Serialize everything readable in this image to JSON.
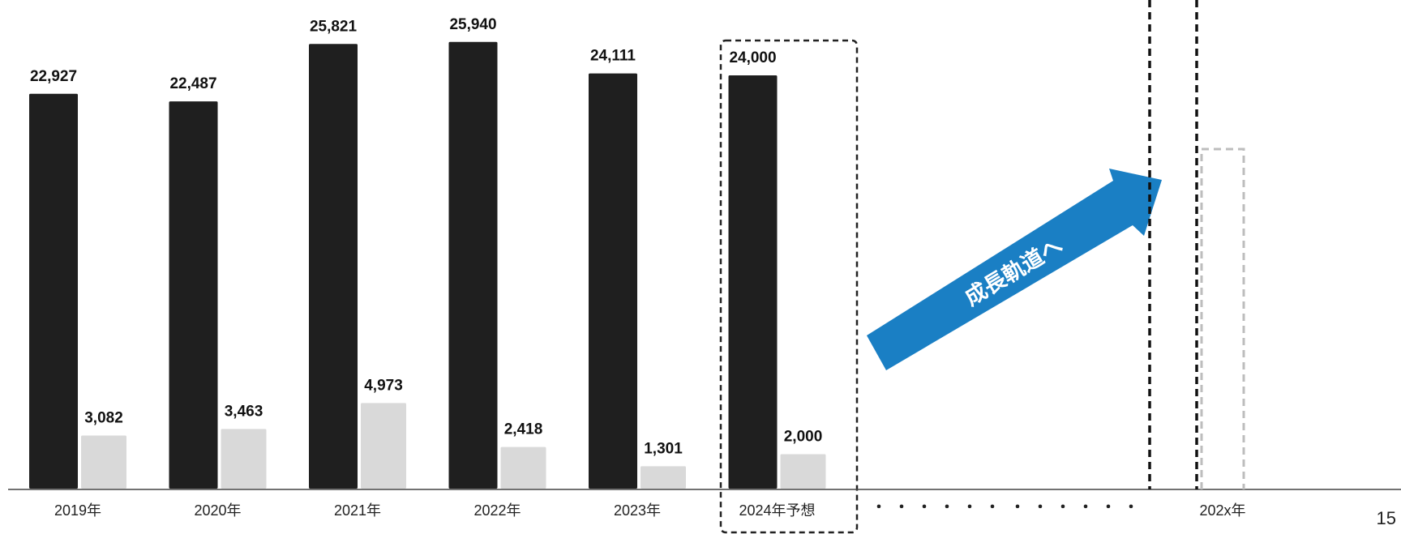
{
  "chart_data": {
    "type": "bar",
    "categories": [
      "2019年",
      "2020年",
      "2021年",
      "2022年",
      "2023年",
      "2024年予想"
    ],
    "series": [
      {
        "values": [
          22927,
          22487,
          25821,
          25940,
          24111,
          24000
        ],
        "labels": [
          "22,927",
          "22,487",
          "25,821",
          "25,940",
          "24,111",
          "24,000"
        ],
        "color": "#1f1f1f"
      },
      {
        "values": [
          3082,
          3463,
          4973,
          2418,
          1301,
          2000
        ],
        "labels": [
          "3,082",
          "3,463",
          "4,973",
          "2,418",
          "1,301",
          "2,000"
        ],
        "color": "#d9d9d9"
      }
    ],
    "future_category": "202x年",
    "ellipsis": [
      "・・・・・・",
      "・・・・・・"
    ],
    "arrow_label": "成長軌道へ",
    "arrow_color": "#1a7fc4",
    "title": "",
    "xlabel": "",
    "ylabel": "",
    "grid": false
  },
  "page_number": "15"
}
